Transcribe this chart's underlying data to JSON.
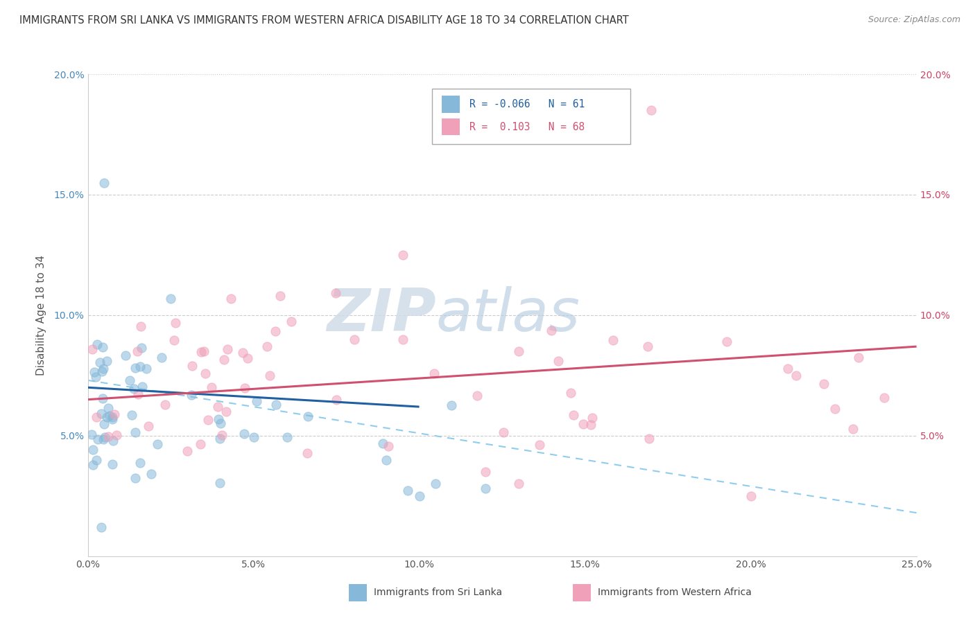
{
  "title": "IMMIGRANTS FROM SRI LANKA VS IMMIGRANTS FROM WESTERN AFRICA DISABILITY AGE 18 TO 34 CORRELATION CHART",
  "source": "Source: ZipAtlas.com",
  "ylabel": "Disability Age 18 to 34",
  "xlim": [
    0.0,
    0.25
  ],
  "ylim": [
    0.0,
    0.2
  ],
  "xticks": [
    0.0,
    0.05,
    0.1,
    0.15,
    0.2,
    0.25
  ],
  "yticks": [
    0.0,
    0.05,
    0.1,
    0.15,
    0.2
  ],
  "xticklabels": [
    "0.0%",
    "5.0%",
    "10.0%",
    "15.0%",
    "20.0%",
    "25.0%"
  ],
  "yticklabels_left": [
    "",
    "5.0%",
    "10.0%",
    "15.0%",
    "20.0%"
  ],
  "yticklabels_right": [
    "",
    "5.0%",
    "10.0%",
    "15.0%",
    "20.0%"
  ],
  "legend_r1_val": "-0.066",
  "legend_n1_val": "61",
  "legend_r2_val": "0.103",
  "legend_n2_val": "68",
  "color_blue": "#85b8d9",
  "color_pink": "#f0a0b8",
  "color_trend_blue": "#2060a0",
  "color_trend_pink": "#d05070",
  "color_trend_dashed": "#90ccee",
  "color_title": "#333333",
  "color_source": "#888888",
  "color_axis_label": "#555555",
  "color_tick_left": "#4488bb",
  "color_tick_right": "#cc4466",
  "watermark_zip": "ZIP",
  "watermark_atlas": "atlas",
  "sri_lanka_trend": [
    0.0,
    0.1,
    [
      0.07,
      0.062
    ]
  ],
  "western_africa_trend": [
    0.0,
    0.25,
    [
      0.065,
      0.087
    ]
  ],
  "dashed_trend": [
    0.0,
    0.25,
    [
      0.073,
      0.018
    ]
  ]
}
